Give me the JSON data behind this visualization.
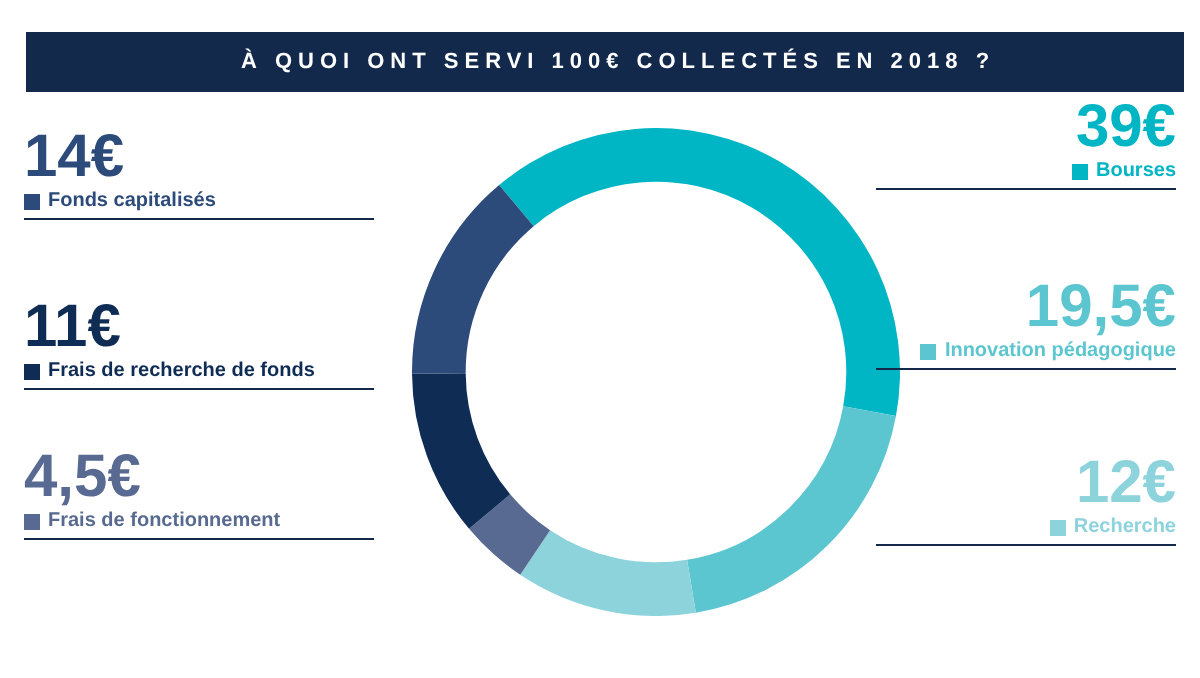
{
  "chart_data": {
    "type": "donut",
    "title": "À QUOI ONT SERVI 100€ COLLECTÉS EN 2018 ?",
    "categories": [
      "Bourses",
      "Innovation pédagogique",
      "Recherche",
      "Frais de fonctionnement",
      "Frais de recherche de fonds",
      "Fonds capitalisés"
    ],
    "values": [
      39,
      19.5,
      12,
      4.5,
      11,
      14
    ],
    "value_labels": [
      "39€",
      "19,5€",
      "12€",
      "4,5€",
      "11€",
      "14€"
    ],
    "colors": [
      "#00b5c4",
      "#5cc6d0",
      "#8dd3dc",
      "#586a91",
      "#0f2c55",
      "#2c4a7a"
    ],
    "legend": "left"
  }
}
